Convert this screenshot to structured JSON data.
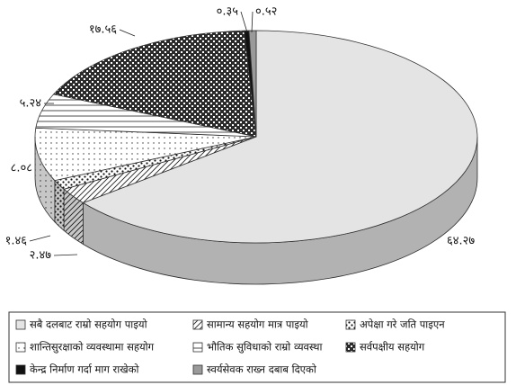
{
  "chart_data": {
    "type": "pie",
    "categories": [
      "सबै दलबाट राम्रो सहयोग पाइयो",
      "सामान्य सहयोग मात्र पाइयो",
      "अपेक्षा गरे जति पाइएन",
      "शान्तिसुरक्षाको व्यवस्थामा सहयोग",
      "भौतिक सुविधाको राम्रो व्यवस्था",
      "सर्वपक्षीय सहयोग",
      "केन्द्र निर्माण गर्दा माग राखेको",
      "स्वर्यसेवक राख्न दबाब दिएको"
    ],
    "values": [
      64.27,
      2.47,
      1.46,
      8.08,
      5.24,
      17.56,
      0.35,
      0.52
    ],
    "value_labels": [
      "६४.२७",
      "२.४७",
      "१.४६",
      "८.०८",
      "५.२४",
      "१७.५६",
      "०.३५",
      "०.५२"
    ],
    "colors": [
      "#e4e4e4",
      "#ffffff",
      "#ffffff",
      "#ffffff",
      "#ffffff",
      "#2a2a2a",
      "#111111",
      "#9a9a9a"
    ],
    "legend": "bottom"
  }
}
